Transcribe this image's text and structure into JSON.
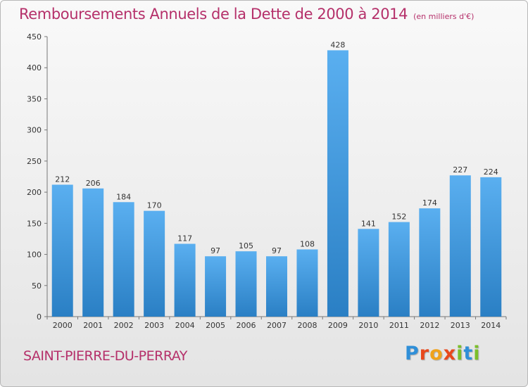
{
  "title": "Remboursements Annuels de la Dette de 2000 à 2014",
  "unit": "(en milliers d'€)",
  "commune": "SAINT-PIERRE-DU-PERRAY",
  "logo": {
    "text": "Proxiti",
    "letter_colors": [
      "#2f8fd8",
      "#e8481c",
      "#f0a21b",
      "#e8481c",
      "#7bbf2a",
      "#2f8fd8",
      "#7bbf2a"
    ]
  },
  "chart_data": {
    "type": "bar",
    "title": "Remboursements Annuels de la Dette de 2000 à 2014",
    "xlabel": "",
    "ylabel": "",
    "categories": [
      "2000",
      "2001",
      "2002",
      "2003",
      "2004",
      "2005",
      "2006",
      "2007",
      "2008",
      "2009",
      "2010",
      "2011",
      "2012",
      "2013",
      "2014"
    ],
    "values": [
      212,
      206,
      184,
      170,
      117,
      97,
      105,
      97,
      108,
      428,
      141,
      152,
      174,
      227,
      224
    ],
    "ylim": [
      0,
      450
    ],
    "yticks": [
      0,
      50,
      100,
      150,
      200,
      250,
      300,
      350,
      400,
      450
    ],
    "grid": false,
    "bar_color_top": "#5aaff0",
    "bar_color_bottom": "#2a7fc4"
  }
}
